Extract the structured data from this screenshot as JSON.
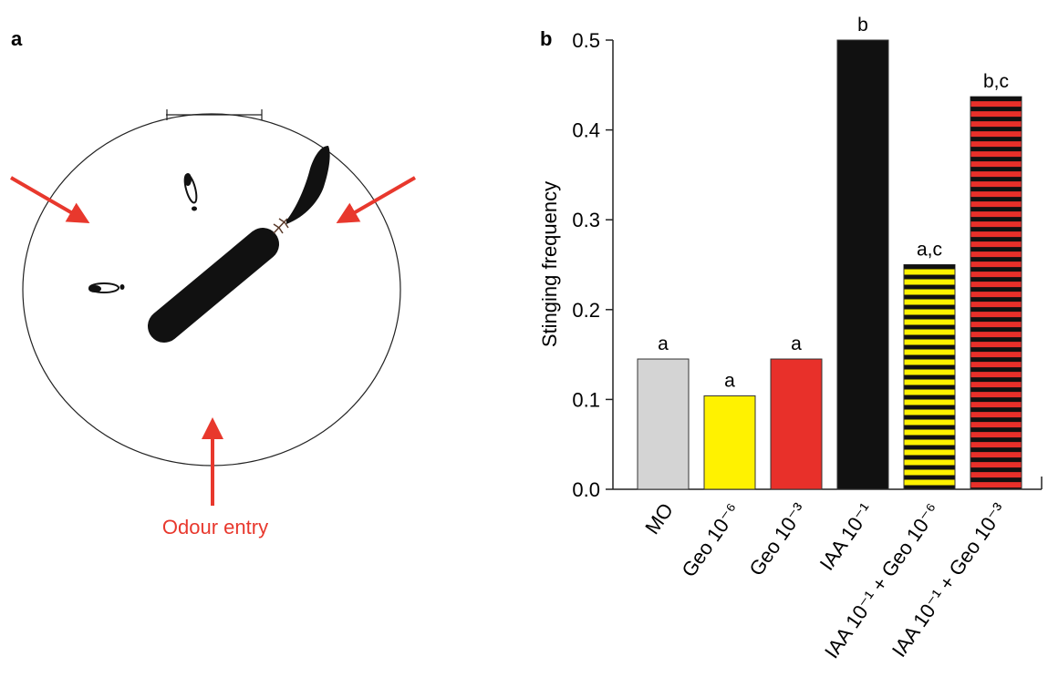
{
  "panel_a": {
    "label": "a",
    "annotation": "Odour entry"
  },
  "chart_data": {
    "type": "bar",
    "panel_label": "b",
    "ylabel": "Stinging frequency",
    "categories": [
      "MO",
      "Geo 10⁻⁶",
      "Geo 10⁻³",
      "IAA 10⁻¹",
      "IAA 10⁻¹ + Geo 10⁻⁶",
      "IAA 10⁻¹ + Geo 10⁻³"
    ],
    "values": [
      0.145,
      0.104,
      0.145,
      0.5,
      0.25,
      0.437
    ],
    "annotations": [
      "a",
      "a",
      "a",
      "b",
      "a,c",
      "b,c"
    ],
    "colors": [
      "#d4d4d4",
      "#fff200",
      "#e8302a",
      "#111111",
      "#fff200",
      "#e8302a"
    ],
    "striped": [
      false,
      false,
      false,
      false,
      true,
      true
    ],
    "stripe_color": "#111111",
    "ylim": [
      0,
      0.5
    ],
    "yticks": [
      {
        "value": 0,
        "label": "0.0"
      },
      0.1,
      0.2,
      0.3,
      0.4,
      0.5
    ]
  }
}
